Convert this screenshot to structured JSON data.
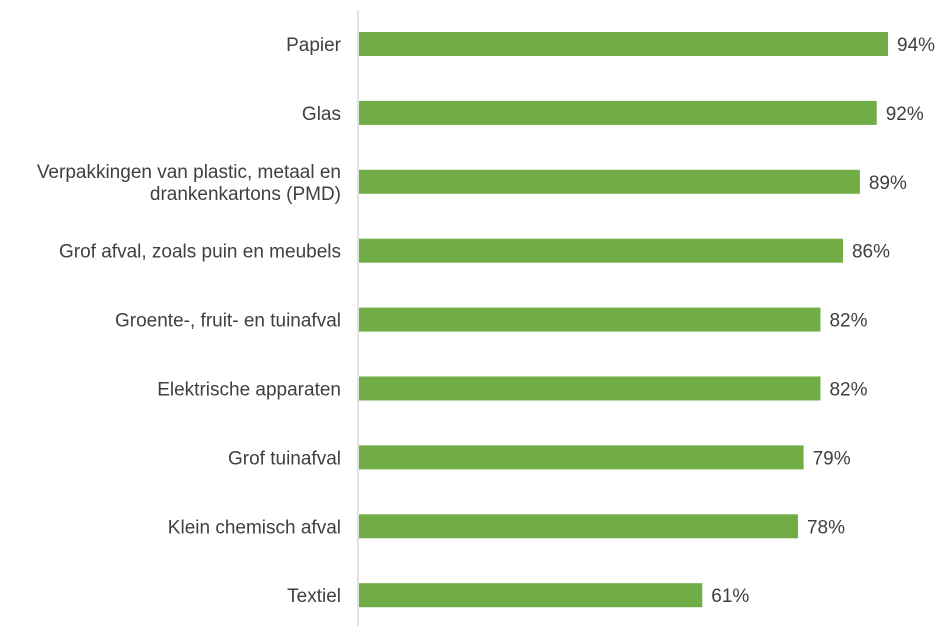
{
  "chart_data": {
    "type": "bar",
    "orientation": "horizontal",
    "categories": [
      [
        "Papier"
      ],
      [
        "Glas"
      ],
      [
        "Verpakkingen van plastic, metaal en",
        "drankenkartons (PMD)"
      ],
      [
        "Grof afval, zoals puin en meubels"
      ],
      [
        "Groente-, fruit- en tuinafval"
      ],
      [
        "Elektrische apparaten"
      ],
      [
        "Grof tuinafval"
      ],
      [
        "Klein chemisch afval"
      ],
      [
        "Textiel"
      ]
    ],
    "values": [
      94,
      92,
      89,
      86,
      82,
      82,
      79,
      78,
      61
    ],
    "value_labels": [
      "94%",
      "92%",
      "89%",
      "86%",
      "82%",
      "82%",
      "79%",
      "78%",
      "61%"
    ],
    "xlim": [
      0,
      100
    ],
    "grid": false,
    "legend": "none",
    "bar_color": "#70AD47"
  }
}
